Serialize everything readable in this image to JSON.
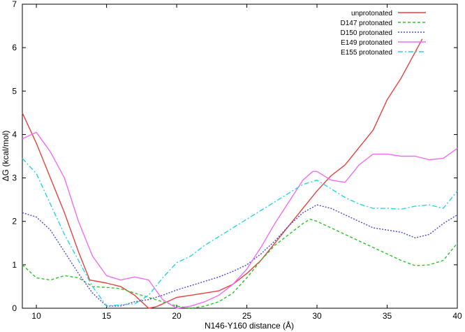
{
  "chart_data": {
    "type": "line",
    "xlabel": "N146-Y160 distance (Å)",
    "ylabel": "ΔG (kcal/mol)",
    "xlim": [
      9,
      40
    ],
    "ylim": [
      0,
      7
    ],
    "xticks": [
      10,
      15,
      20,
      25,
      30,
      35,
      40
    ],
    "yticks": [
      0,
      1,
      2,
      3,
      4,
      5,
      6,
      7
    ],
    "grid": false,
    "legend_position": "top-right",
    "series": [
      {
        "name": "unprotonated",
        "color": "#e8403c",
        "dash": "solid",
        "x": [
          9,
          10,
          11,
          12,
          13,
          13.8,
          15,
          16,
          17,
          17.5,
          18,
          18.5,
          19,
          20,
          21,
          22,
          23,
          24,
          25,
          26,
          27,
          28,
          29,
          30,
          31,
          32,
          33,
          34,
          35,
          36,
          37,
          37.5
        ],
        "y": [
          4.5,
          3.8,
          3.0,
          2.2,
          1.3,
          0.65,
          0.58,
          0.5,
          0.3,
          0.15,
          0.0,
          0.03,
          0.1,
          0.25,
          0.3,
          0.35,
          0.4,
          0.55,
          0.8,
          1.1,
          1.5,
          1.9,
          2.3,
          2.7,
          3.05,
          3.3,
          3.7,
          4.1,
          4.8,
          5.3,
          5.9,
          6.2
        ]
      },
      {
        "name": "D147 protonated",
        "color": "#26c626",
        "dash": "dashed",
        "x": [
          9,
          10,
          11,
          12,
          13,
          14,
          15,
          16,
          17,
          18,
          19,
          20,
          21,
          22,
          23,
          24,
          25,
          26,
          27,
          28,
          29,
          29.5,
          30,
          31,
          32,
          33,
          34,
          35,
          36,
          37,
          38,
          39,
          40
        ],
        "y": [
          1.0,
          0.7,
          0.65,
          0.75,
          0.7,
          0.5,
          0.48,
          0.45,
          0.35,
          0.25,
          0.15,
          0.05,
          0.0,
          0.05,
          0.15,
          0.35,
          0.7,
          1.1,
          1.45,
          1.7,
          1.95,
          2.05,
          2.0,
          1.85,
          1.7,
          1.55,
          1.4,
          1.25,
          1.1,
          0.98,
          1.0,
          1.1,
          1.5
        ]
      },
      {
        "name": "D150 protonated",
        "color": "#4a4ad8",
        "dash": "dotted",
        "x": [
          9,
          10,
          11,
          12,
          13,
          14,
          15,
          16,
          17,
          18,
          19,
          20,
          21,
          22,
          23,
          24,
          25,
          26,
          27,
          28,
          29,
          30,
          31,
          32,
          33,
          34,
          35,
          36,
          37,
          38,
          39,
          40
        ],
        "y": [
          2.2,
          2.1,
          1.8,
          1.3,
          0.8,
          0.35,
          0.05,
          0.05,
          0.15,
          0.2,
          0.3,
          0.42,
          0.52,
          0.62,
          0.72,
          0.85,
          1.0,
          1.25,
          1.55,
          1.9,
          2.2,
          2.38,
          2.3,
          2.15,
          2.0,
          1.85,
          1.8,
          1.75,
          1.62,
          1.7,
          1.95,
          2.15
        ]
      },
      {
        "name": "E149 protonated",
        "color": "#f26cf2",
        "dash": "solid",
        "x": [
          9,
          10,
          11,
          12,
          13,
          14,
          15,
          16,
          17,
          18,
          19,
          20,
          21,
          22,
          23,
          24,
          25,
          26,
          27,
          28,
          29,
          29.7,
          30,
          31,
          32,
          33,
          34,
          35,
          36,
          37,
          38,
          39,
          40
        ],
        "y": [
          3.9,
          4.05,
          3.6,
          3.0,
          2.0,
          1.2,
          0.75,
          0.65,
          0.72,
          0.65,
          0.2,
          0.0,
          0.05,
          0.15,
          0.3,
          0.55,
          0.9,
          1.4,
          1.95,
          2.45,
          2.95,
          3.15,
          3.15,
          2.95,
          2.9,
          3.3,
          3.55,
          3.55,
          3.5,
          3.5,
          3.42,
          3.45,
          3.68
        ]
      },
      {
        "name": "E155 protonated",
        "color": "#28d4e4",
        "dash": "dashdot",
        "x": [
          9,
          10,
          11,
          12,
          13,
          14,
          15,
          16,
          17,
          18,
          19,
          20,
          21,
          22,
          23,
          24,
          25,
          26,
          27,
          28,
          29,
          30,
          31,
          32,
          33,
          34,
          35,
          36,
          37,
          38,
          39,
          40
        ],
        "y": [
          3.45,
          3.1,
          2.4,
          1.7,
          1.1,
          0.5,
          0.05,
          0.08,
          0.1,
          0.3,
          0.7,
          1.05,
          1.2,
          1.45,
          1.65,
          1.85,
          2.05,
          2.25,
          2.45,
          2.65,
          2.85,
          2.95,
          2.75,
          2.55,
          2.4,
          2.3,
          2.3,
          2.28,
          2.35,
          2.38,
          2.3,
          2.7
        ]
      }
    ]
  }
}
